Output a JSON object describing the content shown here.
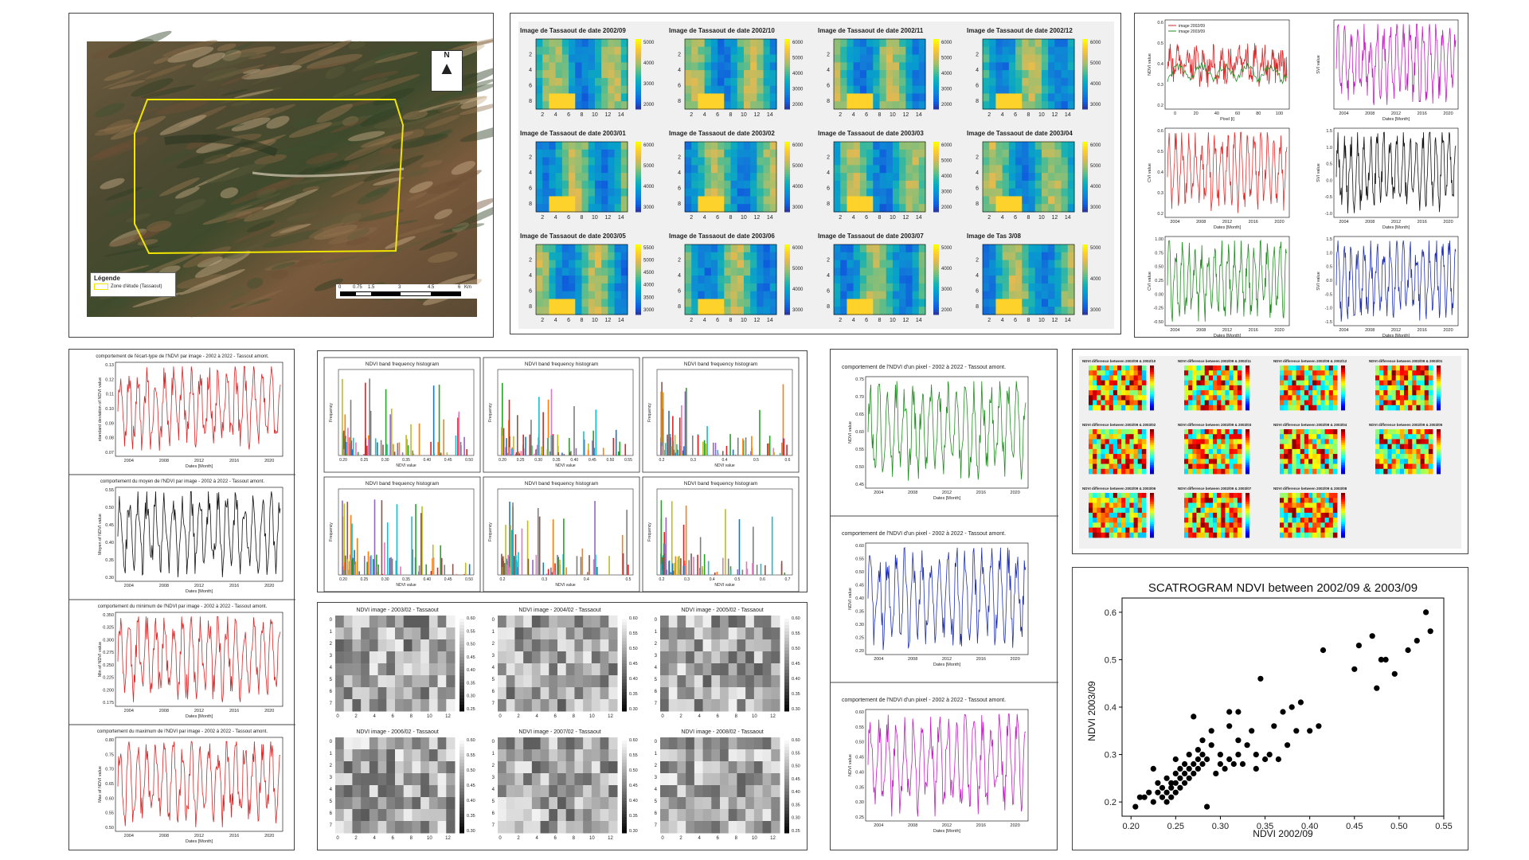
{
  "map": {
    "legend_title": "Légende",
    "legend_item": "Zone d'étude (Tassaout)",
    "north": "N",
    "scale_ticks": [
      "0",
      "0.75",
      "1.5",
      "3",
      "4.5",
      "6"
    ],
    "scale_unit": "Km",
    "colors": {
      "zone": "#f2e600"
    }
  },
  "heatmap_grid": {
    "titles": [
      "Image de Tassaout de date 2002/09",
      "Image de Tassaout de date 2002/10",
      "Image de Tassaout de date 2002/11",
      "Image de Tassaout de date 2002/12",
      "Image de Tassaout de date 2003/01",
      "Image de Tassaout de date 2003/02",
      "Image de Tassaout de date 2003/03",
      "Image de Tassaout de date 2003/04",
      "Image de Tassaout de date 2003/05",
      "Image de Tassaout de date 2003/06",
      "Image de Tassaout de date 2003/07",
      "Image de Tas         3/08"
    ],
    "colorbar_ticks": [
      [
        "5000",
        "4000",
        "3000",
        "2000"
      ],
      [
        "6000",
        "5000",
        "4000",
        "3000",
        "2000"
      ],
      [
        "6000",
        "5000",
        "4000",
        "3000",
        "2000"
      ],
      [
        "6000",
        "5000",
        "4000",
        "3000"
      ],
      [
        "6000",
        "5000",
        "4000",
        "3000"
      ],
      [
        "6000",
        "5000",
        "4000",
        "3000"
      ],
      [
        "6000",
        "5000",
        "4000",
        "3000",
        "2000"
      ],
      [
        "6000",
        "5000",
        "4000",
        "3000"
      ],
      [
        "5500",
        "5000",
        "4500",
        "4000",
        "3500",
        "3000"
      ],
      [
        "6000",
        "5000",
        "4000",
        "3000"
      ],
      [
        "5000",
        "4000",
        "3000",
        "2000"
      ],
      [
        "5000",
        "4000",
        "3000"
      ]
    ],
    "x_ticks": [
      "2",
      "4",
      "6",
      "8",
      "10",
      "12",
      "14"
    ],
    "y_ticks": [
      "2",
      "4",
      "6",
      "8"
    ]
  },
  "small_series": {
    "legend": [
      "image 2002/09",
      "image 2003/09"
    ],
    "panels": [
      {
        "ylabel": "NDVI value",
        "xlabel": "Pixel [i]",
        "x_ticks": [
          "0",
          "20",
          "40",
          "60",
          "80",
          "100"
        ],
        "y_ticks": [
          "0.6",
          "0.5",
          "0.4",
          "0.3",
          "0.2"
        ],
        "color": "#d62728"
      },
      {
        "ylabel": "SVI value",
        "xlabel": "Dates [Month]",
        "x_ticks": [
          "2004",
          "2008",
          "2012",
          "2016",
          "2020"
        ],
        "y_ticks": [],
        "color": "#c020c0"
      },
      {
        "ylabel": "CVI value",
        "xlabel": "Dates [Month]",
        "x_ticks": [
          "2004",
          "2008",
          "2012",
          "2016",
          "2020"
        ],
        "y_ticks": [
          "0.6",
          "0.5",
          "0.4",
          "0.3",
          "0.2"
        ],
        "color": "#e03030"
      },
      {
        "ylabel": "SVI value",
        "xlabel": "Dates [Month]",
        "x_ticks": [
          "2004",
          "2008",
          "2012",
          "2016",
          "2020"
        ],
        "y_ticks": [
          "1.5",
          "1.0",
          "0.5",
          "0.0",
          "-0.5",
          "-1.0"
        ],
        "color": "#111111"
      },
      {
        "ylabel": "CVI value",
        "xlabel": "Dates [Month]",
        "x_ticks": [
          "2004",
          "2008",
          "2012",
          "2016",
          "2020"
        ],
        "y_ticks": [
          "1.00",
          "0.75",
          "0.50",
          "0.25",
          "0.00",
          "-0.25",
          "-0.50"
        ],
        "color": "#228b22"
      },
      {
        "ylabel": "SVI value",
        "xlabel": "Dates [Month]",
        "x_ticks": [
          "2004",
          "2008",
          "2012",
          "2016",
          "2020"
        ],
        "y_ticks": [
          "1.5",
          "1.0",
          "0.5",
          "0.0",
          "-0.5",
          "-1.0",
          "-1.5"
        ],
        "color": "#2030b0"
      }
    ]
  },
  "stats_series": [
    {
      "title": "comportement de l'écart-type de l'NDVI par image - 2002 à 2022 - Tassout amont.",
      "ylabel": "standard deviation of NDVI value",
      "xlabel": "Dates [Month]",
      "y_ticks": [
        "0.13",
        "0.12",
        "0.11",
        "0.10",
        "0.09",
        "0.08",
        "0.07"
      ],
      "x_ticks": [
        "2004",
        "2008",
        "2012",
        "2016",
        "2020"
      ],
      "color": "#d62728"
    },
    {
      "title": "comportement du moyen de l'NDVI par image - 2002 à 2022 - Tassout amont.",
      "ylabel": "Moyen of NDVI value",
      "xlabel": "Dates [Month]",
      "y_ticks": [
        "0.55",
        "0.50",
        "0.45",
        "0.40",
        "0.35",
        "0.30"
      ],
      "x_ticks": [
        "2004",
        "2008",
        "2012",
        "2016",
        "2020"
      ],
      "color": "#111111"
    },
    {
      "title": "comportement du minimum de l'NDVI par image - 2002 à 2022 - Tassout amont.",
      "ylabel": "Min of NDVI value",
      "xlabel": "Dates [Month]",
      "y_ticks": [
        "0.350",
        "0.325",
        "0.300",
        "0.275",
        "0.250",
        "0.225",
        "0.200",
        "0.175"
      ],
      "x_ticks": [
        "2004",
        "2008",
        "2012",
        "2016",
        "2020"
      ],
      "color": "#d62728"
    },
    {
      "title": "comportement du maximum de l'NDVI par image - 2002 à 2022 - Tassout amont.",
      "ylabel": "Max of NDVI value",
      "xlabel": "Dates [Month]",
      "y_ticks": [
        "0.80",
        "0.75",
        "0.70",
        "0.65",
        "0.60",
        "0.55",
        "0.50"
      ],
      "x_ticks": [
        "2004",
        "2008",
        "2012",
        "2016",
        "2020"
      ],
      "color": "#d62728"
    }
  ],
  "histograms": {
    "title": "NDVI band frequency histogram",
    "xlabel": "NDVI value",
    "ylabel": "Frequency",
    "x_ticks": [
      [
        "0.20",
        "0.25",
        "0.30",
        "0.35",
        "0.40",
        "0.45",
        "0.50"
      ],
      [
        "0.20",
        "0.25",
        "0.30",
        "0.35",
        "0.40",
        "0.45",
        "0.50",
        "0.55"
      ],
      [
        "0.2",
        "0.3",
        "0.4",
        "0.5",
        "0.6"
      ],
      [
        "0.20",
        "0.25",
        "0.30",
        "0.35",
        "0.40",
        "0.45",
        "0.50"
      ],
      [
        "0.2",
        "0.3",
        "0.4",
        "0.5"
      ],
      [
        "0.2",
        "0.3",
        "0.4",
        "0.5",
        "0.6",
        "0.7"
      ]
    ]
  },
  "gray_images": {
    "titles": [
      "NDVI image - 2003/02 - Tassaout",
      "NDVI image - 2004/02 - Tassaout",
      "NDVI image - 2005/02 - Tassaout",
      "NDVI image - 2006/02 - Tassaout",
      "NDVI image - 2007/02 - Tassaout",
      "NDVI image - 2008/02 - Tassaout"
    ],
    "x_ticks": [
      "0",
      "2",
      "4",
      "6",
      "8",
      "10",
      "12"
    ],
    "y_ticks": [
      "0",
      "1",
      "2",
      "3",
      "4",
      "5",
      "6",
      "7"
    ],
    "colorbar_ticks": [
      [
        "0.60",
        "0.55",
        "0.50",
        "0.45",
        "0.40",
        "0.35",
        "0.30",
        "0.25"
      ],
      [
        "0.60",
        "0.55",
        "0.50",
        "0.45",
        "0.40",
        "0.35",
        "0.30"
      ],
      [
        "0.60",
        "0.55",
        "0.50",
        "0.45",
        "0.40",
        "0.35",
        "0.30"
      ],
      [
        "0.60",
        "0.55",
        "0.50",
        "0.45",
        "0.40",
        "0.35",
        "0.30"
      ],
      [
        "0.60",
        "0.55",
        "0.50",
        "0.45",
        "0.40",
        "0.35",
        "0.30"
      ],
      [
        "0.60",
        "0.55",
        "0.50",
        "0.45",
        "0.40",
        "0.35",
        "0.30",
        "0.25"
      ]
    ]
  },
  "pixel_series": [
    {
      "title": "comportement de l'NDVI d'un pixel - 2002 à 2022 - Tassout amont.",
      "ylabel": "NDVI value",
      "xlabel": "Dates [Month]",
      "y_ticks": [
        "0.75",
        "0.70",
        "0.65",
        "0.60",
        "0.55",
        "0.50",
        "0.45"
      ],
      "x_ticks": [
        "2004",
        "2008",
        "2012",
        "2016",
        "2020"
      ],
      "color": "#228b22"
    },
    {
      "title": "comportement de l'NDVI d'un pixel - 2002 à 2022 - Tassout amont.",
      "ylabel": "NDVI value",
      "xlabel": "Dates [Month]",
      "y_ticks": [
        "0.60",
        "0.55",
        "0.50",
        "0.45",
        "0.40",
        "0.35",
        "0.30",
        "0.25",
        "0.20"
      ],
      "x_ticks": [
        "2004",
        "2008",
        "2012",
        "2016",
        "2020"
      ],
      "color": "#2030b0"
    },
    {
      "title": "comportement de l'NDVI d'un pixel - 2002 à 2022 - Tassout amont.",
      "ylabel": "NDVI value",
      "xlabel": "Dates [Month]",
      "y_ticks": [
        "0.60",
        "0.55",
        "0.50",
        "0.45",
        "0.40",
        "0.35",
        "0.30",
        "0.25"
      ],
      "x_ticks": [
        "2004",
        "2008",
        "2012",
        "2016",
        "2020"
      ],
      "color": "#c020c0"
    }
  ],
  "diff_maps": {
    "titles": [
      "NDVI difference between 2002/09 & 2002/10",
      "NDVI difference between 2002/09 & 2002/11",
      "NDVI difference between 2002/09 & 2002/12",
      "NDVI difference between 2002/09 & 2003/01",
      "NDVI difference between 2002/09 & 2003/02",
      "NDVI difference between 2002/09 & 2003/03",
      "NDVI difference between 2002/09 & 2003/04",
      "NDVI difference between 2002/09 & 2003/05",
      "NDVI difference between 2002/09 & 2003/06",
      "NDVI difference between 2002/09 & 2003/07",
      "NDVI difference between 2002/09 & 2003/08"
    ]
  },
  "chart_data": {
    "type": "scatter",
    "title": "SCATROGRAM NDVI between 2002/09 & 2003/09",
    "xlabel": "NDVI 2002/09",
    "ylabel": "NDVI 2003/09",
    "xlim": [
      0.19,
      0.55
    ],
    "ylim": [
      0.17,
      0.63
    ],
    "x_ticks": [
      "0.20",
      "0.25",
      "0.30",
      "0.35",
      "0.40",
      "0.45",
      "0.50",
      "0.55"
    ],
    "y_ticks": [
      "0.6",
      "0.5",
      "0.4",
      "0.3",
      "0.2"
    ],
    "grid": false,
    "color": "#000000",
    "points": [
      [
        0.205,
        0.19
      ],
      [
        0.21,
        0.21
      ],
      [
        0.215,
        0.21
      ],
      [
        0.22,
        0.22
      ],
      [
        0.225,
        0.2
      ],
      [
        0.225,
        0.27
      ],
      [
        0.23,
        0.22
      ],
      [
        0.23,
        0.24
      ],
      [
        0.235,
        0.21
      ],
      [
        0.235,
        0.23
      ],
      [
        0.24,
        0.2
      ],
      [
        0.24,
        0.22
      ],
      [
        0.24,
        0.25
      ],
      [
        0.245,
        0.21
      ],
      [
        0.245,
        0.23
      ],
      [
        0.245,
        0.24
      ],
      [
        0.25,
        0.22
      ],
      [
        0.25,
        0.24
      ],
      [
        0.25,
        0.26
      ],
      [
        0.25,
        0.29
      ],
      [
        0.255,
        0.23
      ],
      [
        0.255,
        0.25
      ],
      [
        0.255,
        0.27
      ],
      [
        0.26,
        0.24
      ],
      [
        0.26,
        0.26
      ],
      [
        0.26,
        0.28
      ],
      [
        0.265,
        0.25
      ],
      [
        0.265,
        0.27
      ],
      [
        0.265,
        0.3
      ],
      [
        0.27,
        0.26
      ],
      [
        0.27,
        0.28
      ],
      [
        0.27,
        0.38
      ],
      [
        0.275,
        0.27
      ],
      [
        0.275,
        0.29
      ],
      [
        0.275,
        0.31
      ],
      [
        0.28,
        0.28
      ],
      [
        0.28,
        0.3
      ],
      [
        0.28,
        0.33
      ],
      [
        0.285,
        0.19
      ],
      [
        0.285,
        0.29
      ],
      [
        0.29,
        0.32
      ],
      [
        0.29,
        0.35
      ],
      [
        0.295,
        0.26
      ],
      [
        0.3,
        0.28
      ],
      [
        0.3,
        0.3
      ],
      [
        0.305,
        0.27
      ],
      [
        0.31,
        0.29
      ],
      [
        0.31,
        0.36
      ],
      [
        0.31,
        0.39
      ],
      [
        0.315,
        0.28
      ],
      [
        0.32,
        0.3
      ],
      [
        0.32,
        0.33
      ],
      [
        0.32,
        0.39
      ],
      [
        0.325,
        0.28
      ],
      [
        0.33,
        0.32
      ],
      [
        0.335,
        0.35
      ],
      [
        0.34,
        0.27
      ],
      [
        0.34,
        0.3
      ],
      [
        0.345,
        0.46
      ],
      [
        0.35,
        0.29
      ],
      [
        0.355,
        0.3
      ],
      [
        0.36,
        0.36
      ],
      [
        0.365,
        0.29
      ],
      [
        0.37,
        0.39
      ],
      [
        0.375,
        0.32
      ],
      [
        0.38,
        0.4
      ],
      [
        0.385,
        0.35
      ],
      [
        0.39,
        0.41
      ],
      [
        0.4,
        0.35
      ],
      [
        0.41,
        0.36
      ],
      [
        0.415,
        0.52
      ],
      [
        0.45,
        0.48
      ],
      [
        0.455,
        0.53
      ],
      [
        0.47,
        0.55
      ],
      [
        0.475,
        0.44
      ],
      [
        0.48,
        0.5
      ],
      [
        0.485,
        0.5
      ],
      [
        0.495,
        0.47
      ],
      [
        0.51,
        0.52
      ],
      [
        0.52,
        0.54
      ],
      [
        0.53,
        0.6
      ],
      [
        0.535,
        0.56
      ]
    ]
  }
}
